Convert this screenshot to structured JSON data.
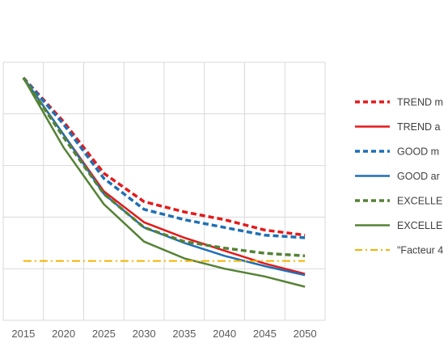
{
  "chart_data": {
    "type": "line",
    "x": [
      2015,
      2020,
      2025,
      2030,
      2035,
      2040,
      2045,
      2050
    ],
    "x_tick_labels": [
      "2015",
      "2020",
      "2025",
      "2030",
      "2035",
      "2040",
      "2045",
      "2050"
    ],
    "xlim": [
      2012.5,
      2052.5
    ],
    "ylim": [
      0,
      100
    ],
    "y_gridlines": [
      0,
      20,
      40,
      60,
      80,
      100
    ],
    "grid": true,
    "legend_position": "right",
    "series": [
      {
        "name": "TREND m",
        "style": "dashed",
        "color": "#e31a1c",
        "values": [
          94,
          77,
          57,
          46,
          42,
          39,
          35,
          33
        ]
      },
      {
        "name": "TREND a",
        "style": "solid",
        "color": "#e31a1c",
        "values": [
          94,
          72,
          50,
          38,
          32,
          27,
          22,
          18
        ]
      },
      {
        "name": "GOOD m",
        "style": "dashed",
        "color": "#1f6fb5",
        "values": [
          94,
          76,
          55,
          43,
          39,
          36,
          33,
          32
        ]
      },
      {
        "name": "GOOD ar",
        "style": "solid",
        "color": "#1f6fb5",
        "values": [
          94,
          72,
          49,
          36,
          30,
          25,
          21,
          17.5
        ]
      },
      {
        "name": "EXCELLE",
        "style": "dashed",
        "color": "#548235",
        "values": [
          94,
          71,
          49,
          36,
          30.5,
          28,
          26,
          25
        ]
      },
      {
        "name": "EXCELLE",
        "style": "solid",
        "color": "#548235",
        "values": [
          94,
          67,
          45,
          30.5,
          24,
          20,
          17,
          13
        ]
      },
      {
        "name": "\"Facteur 4",
        "style": "dashdot",
        "color": "#f2b400",
        "values": [
          23,
          23,
          23,
          23,
          23,
          23,
          23,
          23
        ]
      }
    ]
  }
}
